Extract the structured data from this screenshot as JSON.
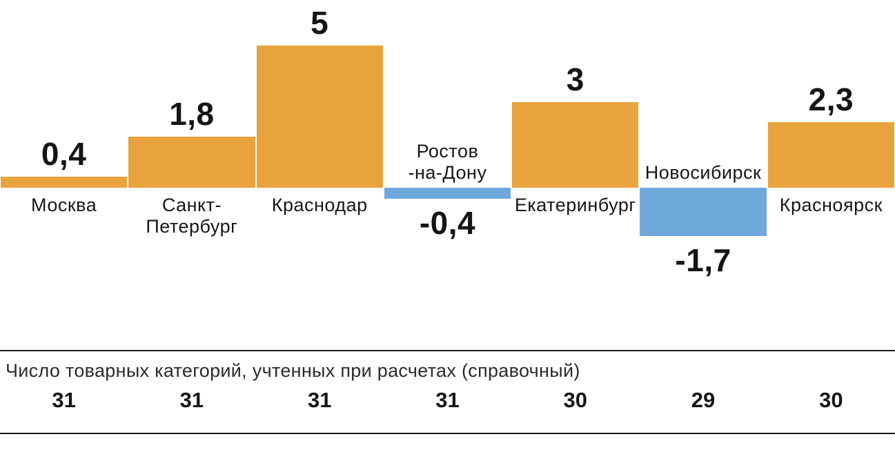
{
  "chart_data": {
    "type": "bar",
    "title": "",
    "categories": [
      "Москва",
      "Санкт-Петербург",
      "Краснодар",
      "Ростов-на-Дону",
      "Екатеринбург",
      "Новосибирск",
      "Красноярск"
    ],
    "category_display_lines": [
      [
        "Москва"
      ],
      [
        "Санкт-",
        "Петербург"
      ],
      [
        "Краснодар"
      ],
      [
        "Ростов",
        "-на-Дону"
      ],
      [
        "Екатеринбург"
      ],
      [
        "Новосибирск"
      ],
      [
        "Красноярск"
      ]
    ],
    "values": [
      0.4,
      1.8,
      5,
      -0.4,
      3,
      -1.7,
      2.3
    ],
    "value_labels": [
      "0,4",
      "1,8",
      "5",
      "-0,4",
      "3",
      "-1,7",
      "2,3"
    ],
    "positive_color": "#E8A33C",
    "negative_color": "#6FA9DC",
    "baseline": 0,
    "ylim": [
      -2,
      5.5
    ],
    "grid": false,
    "legend": "none"
  },
  "footer": {
    "label": "Число товарных категорий, учтенных при расчетах (справочный)",
    "values": [
      "31",
      "31",
      "31",
      "31",
      "30",
      "29",
      "30"
    ]
  }
}
